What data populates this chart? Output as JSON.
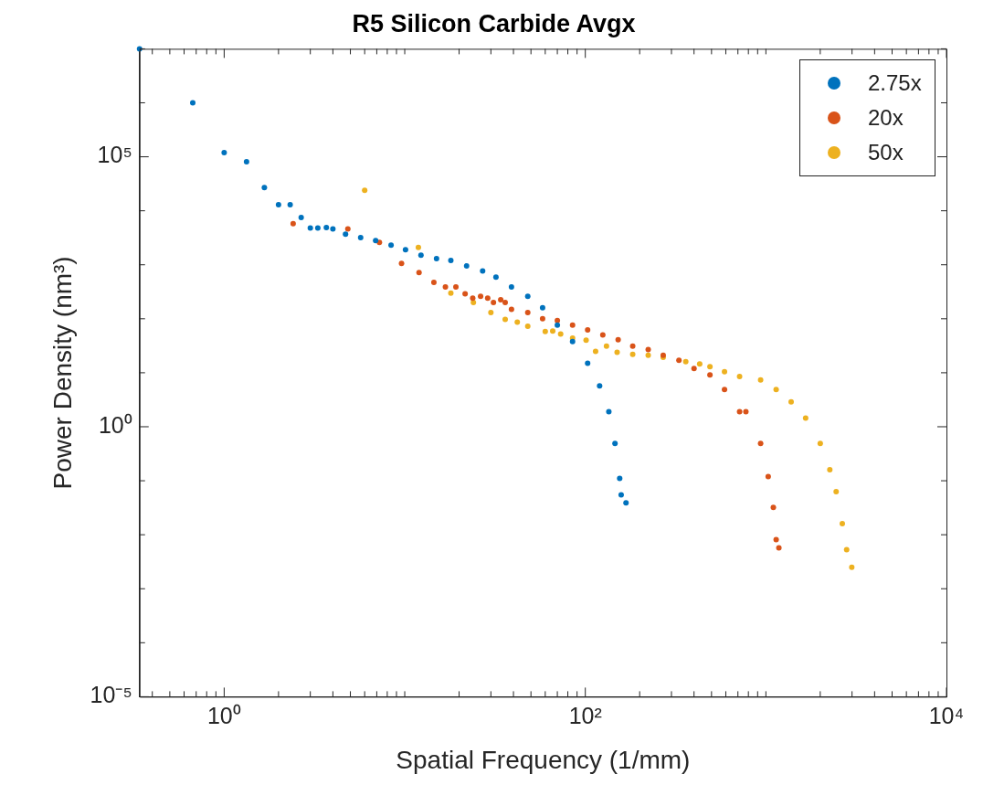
{
  "chart_data": {
    "type": "scatter",
    "title": "R5 Silicon Carbide Avgx",
    "xlabel": "Spatial Frequency (1/mm)",
    "ylabel": "Power Density (nm³)",
    "log": "xy",
    "grid": false,
    "legend": "top right",
    "marker": "circle",
    "xlim": [
      0.34,
      10000
    ],
    "ylim": [
      1e-05,
      10000000
    ],
    "xticks": [
      {
        "value": 0.4,
        "label": null
      },
      {
        "value": 0.5,
        "label": null
      },
      {
        "value": 0.6,
        "label": null
      },
      {
        "value": 0.7,
        "label": null
      },
      {
        "value": 0.8,
        "label": null
      },
      {
        "value": 0.9,
        "label": null
      },
      {
        "value": 1,
        "label": "10⁰"
      },
      {
        "value": 2,
        "label": null
      },
      {
        "value": 3,
        "label": null
      },
      {
        "value": 4,
        "label": null
      },
      {
        "value": 5,
        "label": null
      },
      {
        "value": 6,
        "label": null
      },
      {
        "value": 7,
        "label": null
      },
      {
        "value": 8,
        "label": null
      },
      {
        "value": 9,
        "label": null
      },
      {
        "value": 10,
        "label": null
      },
      {
        "value": 20,
        "label": null
      },
      {
        "value": 30,
        "label": null
      },
      {
        "value": 40,
        "label": null
      },
      {
        "value": 50,
        "label": null
      },
      {
        "value": 60,
        "label": null
      },
      {
        "value": 70,
        "label": null
      },
      {
        "value": 80,
        "label": null
      },
      {
        "value": 90,
        "label": null
      },
      {
        "value": 100,
        "label": "10²"
      },
      {
        "value": 200,
        "label": null
      },
      {
        "value": 300,
        "label": null
      },
      {
        "value": 400,
        "label": null
      },
      {
        "value": 500,
        "label": null
      },
      {
        "value": 600,
        "label": null
      },
      {
        "value": 700,
        "label": null
      },
      {
        "value": 800,
        "label": null
      },
      {
        "value": 900,
        "label": null
      },
      {
        "value": 1000,
        "label": null
      },
      {
        "value": 2000,
        "label": null
      },
      {
        "value": 3000,
        "label": null
      },
      {
        "value": 4000,
        "label": null
      },
      {
        "value": 5000,
        "label": null
      },
      {
        "value": 6000,
        "label": null
      },
      {
        "value": 7000,
        "label": null
      },
      {
        "value": 8000,
        "label": null
      },
      {
        "value": 9000,
        "label": null
      },
      {
        "value": 10000,
        "label": "10⁴"
      }
    ],
    "yticks": [
      {
        "value": 1e-05,
        "label": "10⁻⁵"
      },
      {
        "value": 0.0001,
        "label": null
      },
      {
        "value": 0.001,
        "label": null
      },
      {
        "value": 0.01,
        "label": null
      },
      {
        "value": 0.1,
        "label": null
      },
      {
        "value": 1,
        "label": "10⁰"
      },
      {
        "value": 10,
        "label": null
      },
      {
        "value": 100,
        "label": null
      },
      {
        "value": 1000,
        "label": null
      },
      {
        "value": 10000,
        "label": null
      },
      {
        "value": 100000,
        "label": "10⁵"
      },
      {
        "value": 1000000,
        "label": null
      },
      {
        "value": 10000000,
        "label": null
      }
    ],
    "series": [
      {
        "name": "2.75x",
        "color": "#0072bd",
        "x": [
          0.34,
          0.67,
          1.0,
          1.33,
          1.67,
          2.0,
          2.32,
          2.67,
          3.0,
          3.3,
          3.68,
          4.0,
          4.7,
          5.7,
          6.9,
          8.4,
          10.1,
          12.3,
          15,
          18,
          22,
          27,
          32,
          39,
          48,
          58,
          70,
          85,
          103,
          120,
          135,
          146,
          155,
          158,
          168
        ],
        "values": [
          10000000,
          1000000,
          120000,
          81000,
          27000,
          13000,
          13000,
          7500,
          4800,
          4800,
          4900,
          4600,
          3700,
          3200,
          2800,
          2300,
          1900,
          1500,
          1300,
          1200,
          950,
          770,
          590,
          390,
          260,
          160,
          76,
          38,
          15,
          5.7,
          1.9,
          0.49,
          0.11,
          0.055,
          0.039
        ]
      },
      {
        "name": "20x",
        "color": "#d95319",
        "x": [
          2.41,
          4.84,
          7.24,
          9.6,
          12,
          14.5,
          16.8,
          19.2,
          21.6,
          23.8,
          26.3,
          28.8,
          31,
          34,
          36,
          39,
          48,
          58,
          70,
          85,
          103,
          125,
          152,
          183,
          223,
          270,
          330,
          400,
          490,
          590,
          715,
          775,
          935,
          1030,
          1100,
          1140,
          1180
        ],
        "values": [
          5800,
          4600,
          2600,
          1060,
          720,
          470,
          390,
          390,
          290,
          240,
          260,
          240,
          200,
          225,
          200,
          150,
          130,
          100,
          93,
          76,
          62,
          50,
          41,
          31,
          27,
          21,
          17,
          12,
          9.1,
          4.9,
          1.9,
          1.9,
          0.49,
          0.12,
          0.032,
          0.0081,
          0.0057
        ]
      },
      {
        "name": "50x",
        "color": "#edb120",
        "x": [
          6.0,
          11.9,
          18,
          24,
          30,
          36,
          42,
          48,
          60,
          66,
          73,
          85,
          101,
          114,
          131,
          150,
          183,
          223,
          270,
          360,
          430,
          490,
          590,
          715,
          935,
          1140,
          1380,
          1660,
          2000,
          2260,
          2450,
          2650,
          2800,
          2990
        ],
        "values": [
          24000,
          2100,
          300,
          200,
          130,
          97,
          87,
          73,
          58,
          59,
          52,
          44,
          40,
          25,
          31,
          24,
          22,
          21,
          19.4,
          16,
          14.5,
          13,
          10.5,
          8.5,
          7.4,
          4.9,
          2.9,
          1.45,
          0.49,
          0.16,
          0.063,
          0.016,
          0.0053,
          0.0025
        ]
      }
    ]
  }
}
